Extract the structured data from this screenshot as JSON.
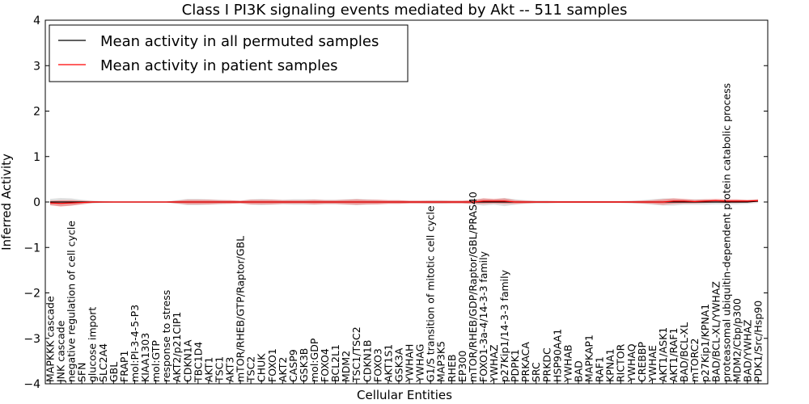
{
  "chart_data": {
    "type": "line",
    "title": "Class I PI3K signaling events mediated by Akt -- 511 samples",
    "xlabel": "Cellular Entities",
    "ylabel": "Inferred Activity",
    "ylim": [
      -4,
      4
    ],
    "yticks": [
      -4,
      -3,
      -2,
      -1,
      0,
      1,
      2,
      3,
      4
    ],
    "grid": false,
    "legend_position": "top-left",
    "categories": [
      "MAPKKK cascade",
      "JNK cascade",
      "negative regulation of cell cycle",
      "SFN",
      "glucose import",
      "SLC2A4",
      "GBL",
      "FRAP1",
      "mol:PI-3-4-5-P3",
      "KIAA1303",
      "mol:GTP",
      "response to stress",
      "AKT2/p21CIP1",
      "CDKN1A",
      "TBC1D4",
      "AKT1",
      "TSC1",
      "AKT3",
      "mTOR/RHEB/GTP/Raptor/GBL",
      "TSC2",
      "CHUK",
      "FOXO1",
      "AKT2",
      "CASP9",
      "GSK3B",
      "mol:GDP",
      "FOXO4",
      "BCL2L1",
      "MDM2",
      "TSC1/TSC2",
      "CDKN1B",
      "FOXO3",
      "AKT1S1",
      "GSK3A",
      "YWHAH",
      "YWHAG",
      "G1/S transition of mitotic cell cycle",
      "MAP3K5",
      "RHEB",
      "EP300",
      "mTOR/RHEB/GDP/Raptor/GBL/PRAS40",
      "FOXO1-3a-4/14-3-3 family",
      "YWHAZ",
      "p27Kip1/14-3-3 family",
      "PDPK1",
      "PRKACA",
      "SRC",
      "PRKDC",
      "HSP90AA1",
      "YWHAB",
      "BAD",
      "MAPKAP1",
      "RAF1",
      "KPNA1",
      "RICTOR",
      "YWHAQ",
      "CREBBP",
      "YWHAE",
      "AKT1/ASK1",
      "AKT1/RAF1",
      "BAD/BCL-XL",
      "mTORC2",
      "p27Kip1/KPNA1",
      "BAD/BCL-XL/YWHAZ",
      "proteasomal ubiquitin-dependent protein catabolic process",
      "MDM2/Cbp/p300",
      "BAD/YWHAZ",
      "PDK1/Src/Hsp90"
    ],
    "series": [
      {
        "name": "Mean activity in all permuted samples",
        "color": "#000000",
        "values": [
          0.0,
          0.0,
          0.0,
          0.0,
          0.0,
          0.0,
          0.0,
          0.0,
          0.0,
          0.0,
          0.0,
          0.0,
          0.0,
          0.0,
          0.0,
          0.0,
          0.0,
          0.0,
          0.0,
          0.0,
          0.0,
          0.0,
          0.0,
          0.0,
          0.0,
          0.0,
          0.0,
          0.0,
          0.0,
          0.0,
          0.0,
          0.0,
          0.0,
          0.0,
          0.0,
          0.0,
          0.0,
          0.0,
          0.0,
          0.0,
          0.0,
          0.0,
          0.0,
          0.0,
          0.0,
          0.0,
          0.0,
          0.0,
          0.0,
          0.0,
          0.0,
          0.0,
          0.0,
          0.0,
          0.0,
          0.0,
          0.0,
          0.0,
          0.0,
          0.0,
          0.0,
          0.0,
          0.0,
          0.0,
          0.0,
          0.0,
          0.0,
          0.02
        ],
        "band": [
          0.07,
          0.09,
          0.08,
          0.05,
          0.03,
          0.02,
          0.01,
          0.01,
          0.01,
          0.01,
          0.01,
          0.01,
          0.04,
          0.07,
          0.07,
          0.06,
          0.05,
          0.04,
          0.03,
          0.06,
          0.07,
          0.06,
          0.05,
          0.06,
          0.06,
          0.06,
          0.05,
          0.05,
          0.06,
          0.07,
          0.06,
          0.05,
          0.04,
          0.04,
          0.03,
          0.03,
          0.04,
          0.04,
          0.03,
          0.03,
          0.05,
          0.08,
          0.06,
          0.09,
          0.06,
          0.04,
          0.03,
          0.03,
          0.02,
          0.02,
          0.02,
          0.02,
          0.02,
          0.02,
          0.02,
          0.03,
          0.04,
          0.06,
          0.08,
          0.08,
          0.06,
          0.06,
          0.06,
          0.05,
          0.05,
          0.05,
          0.04,
          0.04
        ]
      },
      {
        "name": "Mean activity in patient samples",
        "color": "#ff0000",
        "values": [
          -0.02,
          -0.03,
          -0.02,
          -0.01,
          0.0,
          0.0,
          0.0,
          0.0,
          0.0,
          0.0,
          0.0,
          0.0,
          0.0,
          0.0,
          0.0,
          0.0,
          0.0,
          0.0,
          0.0,
          0.0,
          0.0,
          0.0,
          0.0,
          0.0,
          0.0,
          0.0,
          0.0,
          0.0,
          0.0,
          0.0,
          0.0,
          0.0,
          0.0,
          0.0,
          0.0,
          0.0,
          0.0,
          0.0,
          0.0,
          0.0,
          0.0,
          0.02,
          0.02,
          0.02,
          0.0,
          0.0,
          0.0,
          0.0,
          0.0,
          0.0,
          0.0,
          0.0,
          0.0,
          0.0,
          0.0,
          0.0,
          0.0,
          0.0,
          0.0,
          0.02,
          0.02,
          0.01,
          0.02,
          0.03,
          0.02,
          0.02,
          0.02,
          0.03
        ],
        "band": [
          0.05,
          0.07,
          0.06,
          0.04,
          0.02,
          0.01,
          0.01,
          0.01,
          0.01,
          0.01,
          0.01,
          0.01,
          0.03,
          0.05,
          0.05,
          0.05,
          0.04,
          0.04,
          0.03,
          0.05,
          0.05,
          0.05,
          0.04,
          0.04,
          0.04,
          0.05,
          0.04,
          0.04,
          0.05,
          0.06,
          0.05,
          0.05,
          0.04,
          0.04,
          0.03,
          0.03,
          0.03,
          0.03,
          0.03,
          0.03,
          0.04,
          0.06,
          0.05,
          0.06,
          0.04,
          0.03,
          0.02,
          0.02,
          0.02,
          0.02,
          0.02,
          0.02,
          0.02,
          0.02,
          0.02,
          0.02,
          0.03,
          0.04,
          0.06,
          0.06,
          0.05,
          0.04,
          0.04,
          0.04,
          0.04,
          0.04,
          0.03,
          0.03
        ]
      }
    ]
  }
}
